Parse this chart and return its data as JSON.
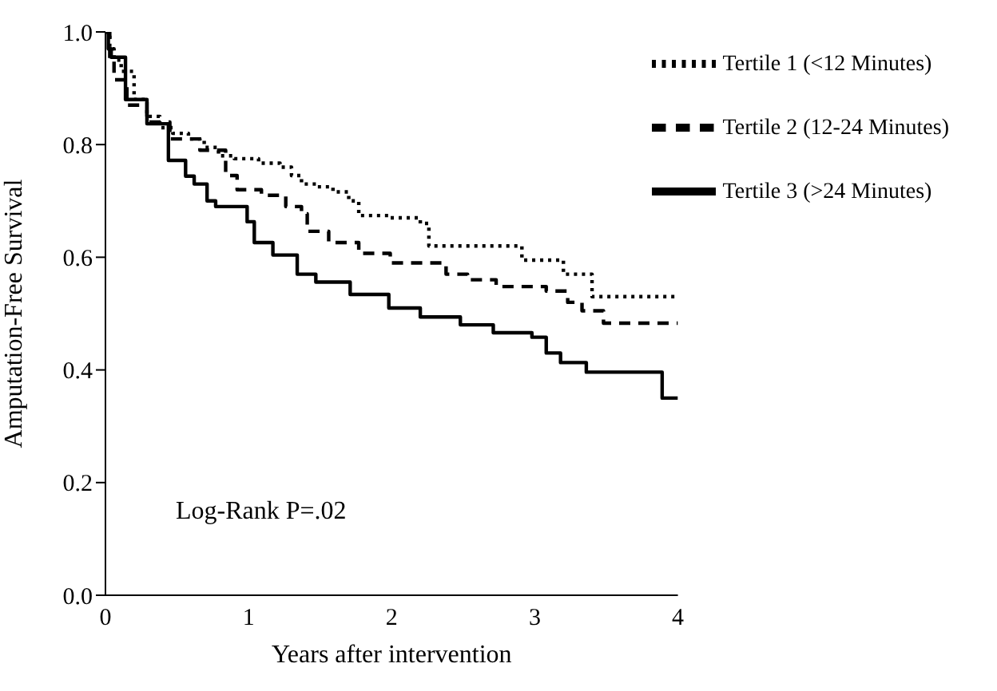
{
  "chart_data": {
    "type": "step",
    "xlabel": "Years after intervention",
    "ylabel": "Amputation-Free Survival",
    "xlim": [
      0,
      4
    ],
    "xticks": [
      0,
      1,
      2,
      3,
      4
    ],
    "ylim": [
      0,
      1
    ],
    "yticks": [
      {
        "value": 0,
        "label": "0.0"
      },
      {
        "value": 0.2,
        "label": "0.2"
      },
      {
        "value": 0.4,
        "label": "0.4"
      },
      {
        "value": 0.6,
        "label": "0.6"
      },
      {
        "value": 0.8,
        "label": "0.8"
      },
      {
        "value": 1,
        "label": "1.0"
      }
    ],
    "legend": "top right",
    "marker": "none",
    "annotations": [
      "Log-Rank P=.02"
    ],
    "series": [
      {
        "name": "Tertile 1 (<12 Minutes)",
        "color": "#000000",
        "line_style": "dotted",
        "x": [
          0,
          0.03,
          0.06,
          0.11,
          0.2,
          0.29,
          0.38,
          0.47,
          0.58,
          0.69,
          0.79,
          0.9,
          1.07,
          1.22,
          1.3,
          1.37,
          1.48,
          1.59,
          1.7,
          1.77,
          1.99,
          2.2,
          2.26,
          2.91,
          3.2,
          3.4,
          4
        ],
        "values": [
          1,
          0.97,
          0.95,
          0.93,
          0.88,
          0.85,
          0.83,
          0.82,
          0.81,
          0.795,
          0.78,
          0.775,
          0.767,
          0.76,
          0.745,
          0.73,
          0.725,
          0.716,
          0.7,
          0.674,
          0.67,
          0.66,
          0.62,
          0.595,
          0.57,
          0.53,
          0.53
        ]
      },
      {
        "name": "Tertile 2 (12-24 Minutes)",
        "color": "#000000",
        "line_style": "dashed",
        "x": [
          0,
          0.03,
          0.06,
          0.15,
          0.29,
          0.45,
          0.66,
          0.84,
          0.92,
          1.09,
          1.26,
          1.37,
          1.41,
          1.56,
          1.77,
          1.99,
          2.38,
          2.53,
          2.73,
          3.08,
          3.23,
          3.33,
          3.48,
          4
        ],
        "values": [
          1,
          0.95,
          0.915,
          0.87,
          0.84,
          0.81,
          0.79,
          0.745,
          0.72,
          0.71,
          0.69,
          0.677,
          0.646,
          0.626,
          0.607,
          0.59,
          0.57,
          0.56,
          0.548,
          0.54,
          0.52,
          0.505,
          0.483,
          0.483
        ]
      },
      {
        "name": "Tertile 3 (>24 Minutes)",
        "color": "#000000",
        "line_style": "solid",
        "x": [
          0,
          0.02,
          0.04,
          0.14,
          0.29,
          0.44,
          0.56,
          0.62,
          0.71,
          0.77,
          0.99,
          1.04,
          1.17,
          1.34,
          1.47,
          1.71,
          1.98,
          2.2,
          2.48,
          2.71,
          2.98,
          3.08,
          3.18,
          3.36,
          3.89,
          4
        ],
        "values": [
          1,
          0.97,
          0.955,
          0.88,
          0.837,
          0.772,
          0.744,
          0.73,
          0.7,
          0.69,
          0.663,
          0.626,
          0.604,
          0.57,
          0.556,
          0.534,
          0.51,
          0.494,
          0.48,
          0.466,
          0.458,
          0.43,
          0.413,
          0.396,
          0.35,
          0.35
        ]
      }
    ]
  }
}
